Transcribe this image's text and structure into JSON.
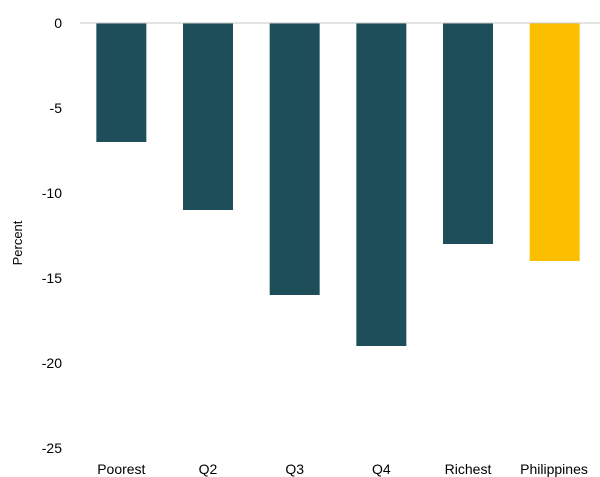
{
  "chart_data": {
    "type": "bar",
    "title": "",
    "xlabel": "",
    "ylabel": "Percent",
    "categories": [
      "Poorest",
      "Q2",
      "Q3",
      "Q4",
      "Richest",
      "Philippines"
    ],
    "values": [
      -7,
      -11,
      -16,
      -19,
      -13,
      -14
    ],
    "ylim": [
      -25,
      0
    ],
    "yticks": [
      "0",
      "-5",
      "-10",
      "-15",
      "-20",
      "-25"
    ],
    "grid": false,
    "legend": "none",
    "colors": {
      "default": "#1d4e5a",
      "highlight": "#fcbf00",
      "axis": "#c8c8c8"
    },
    "highlight_category": "Philippines"
  }
}
